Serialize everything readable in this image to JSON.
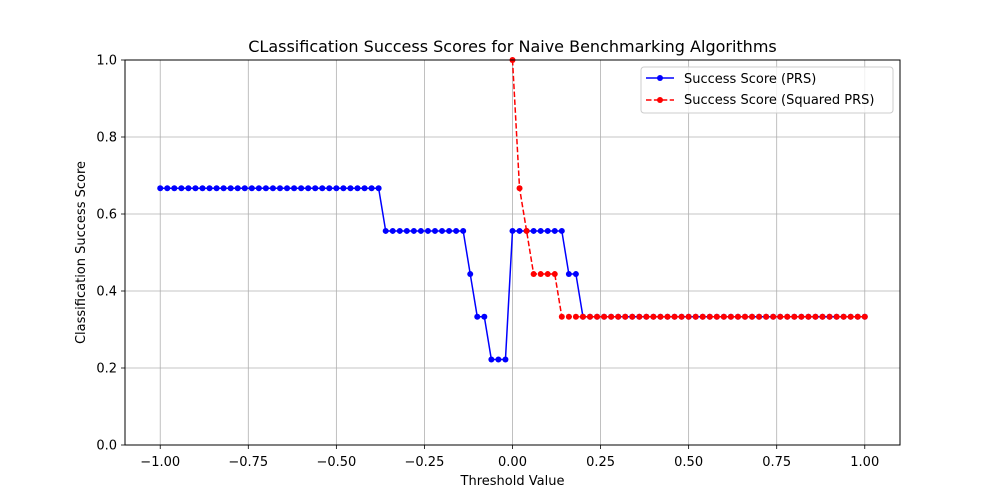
{
  "chart_data": {
    "type": "line",
    "title": "CLassification Success Scores for Naive Benchmarking Algorithms",
    "xlabel": "Threshold Value",
    "ylabel": "Classification Success Score",
    "xlim": [
      -1.1,
      1.1
    ],
    "ylim": [
      0.0,
      1.0
    ],
    "grid": true,
    "legend_position": "top-right",
    "x_ticks": [
      -1.0,
      -0.75,
      -0.5,
      -0.25,
      0.0,
      0.25,
      0.5,
      0.75,
      1.0
    ],
    "x_tick_labels": [
      "−1.00",
      "−0.75",
      "−0.50",
      "−0.25",
      "0.00",
      "0.25",
      "0.50",
      "0.75",
      "1.00"
    ],
    "y_ticks": [
      0.0,
      0.2,
      0.4,
      0.6,
      0.8,
      1.0
    ],
    "y_tick_labels": [
      "0.0",
      "0.2",
      "0.4",
      "0.6",
      "0.8",
      "1.0"
    ],
    "series": [
      {
        "name": "Success Score (PRS)",
        "color": "#0000ff",
        "line_style": "solid",
        "marker": "circle",
        "x": [
          -1.0,
          -0.98,
          -0.96,
          -0.94,
          -0.92,
          -0.9,
          -0.88,
          -0.86,
          -0.84,
          -0.82,
          -0.8,
          -0.78,
          -0.76,
          -0.74,
          -0.72,
          -0.7,
          -0.68,
          -0.66,
          -0.64,
          -0.62,
          -0.6,
          -0.58,
          -0.56,
          -0.54,
          -0.52,
          -0.5,
          -0.48,
          -0.46,
          -0.44,
          -0.42,
          -0.4,
          -0.38,
          -0.36,
          -0.34,
          -0.32,
          -0.3,
          -0.28,
          -0.26,
          -0.24,
          -0.22,
          -0.2,
          -0.18,
          -0.16,
          -0.14,
          -0.12,
          -0.1,
          -0.08,
          -0.06,
          -0.04,
          -0.02,
          0.0,
          0.02,
          0.04,
          0.06,
          0.08,
          0.1,
          0.12,
          0.14,
          0.16,
          0.18,
          0.2,
          0.22,
          0.24,
          0.26,
          0.28,
          0.3,
          0.32,
          0.34,
          0.36,
          0.38,
          0.4,
          0.42,
          0.44,
          0.46,
          0.48,
          0.5,
          0.52,
          0.54,
          0.56,
          0.58,
          0.6,
          0.62,
          0.64,
          0.66,
          0.68,
          0.7,
          0.72,
          0.74,
          0.76,
          0.78,
          0.8,
          0.82,
          0.84,
          0.86,
          0.88,
          0.9,
          0.92,
          0.94,
          0.96,
          0.98,
          1.0
        ],
        "y": [
          0.667,
          0.667,
          0.667,
          0.667,
          0.667,
          0.667,
          0.667,
          0.667,
          0.667,
          0.667,
          0.667,
          0.667,
          0.667,
          0.667,
          0.667,
          0.667,
          0.667,
          0.667,
          0.667,
          0.667,
          0.667,
          0.667,
          0.667,
          0.667,
          0.667,
          0.667,
          0.667,
          0.667,
          0.667,
          0.667,
          0.667,
          0.667,
          0.556,
          0.556,
          0.556,
          0.556,
          0.556,
          0.556,
          0.556,
          0.556,
          0.556,
          0.556,
          0.556,
          0.556,
          0.444,
          0.333,
          0.333,
          0.222,
          0.222,
          0.222,
          0.556,
          0.556,
          0.556,
          0.556,
          0.556,
          0.556,
          0.556,
          0.556,
          0.444,
          0.444,
          0.333,
          0.333,
          0.333,
          0.333,
          0.333,
          0.333,
          0.333,
          0.333,
          0.333,
          0.333,
          0.333,
          0.333,
          0.333,
          0.333,
          0.333,
          0.333,
          0.333,
          0.333,
          0.333,
          0.333,
          0.333,
          0.333,
          0.333,
          0.333,
          0.333,
          0.333,
          0.333,
          0.333,
          0.333,
          0.333,
          0.333,
          0.333,
          0.333,
          0.333,
          0.333,
          0.333,
          0.333,
          0.333,
          0.333,
          0.333,
          0.333
        ]
      },
      {
        "name": "Success Score (Squared PRS)",
        "color": "#ff0000",
        "line_style": "dashed",
        "marker": "circle",
        "x": [
          0.0,
          0.02,
          0.04,
          0.06,
          0.08,
          0.1,
          0.12,
          0.14,
          0.16,
          0.18,
          0.2,
          0.22,
          0.24,
          0.26,
          0.28,
          0.3,
          0.32,
          0.34,
          0.36,
          0.38,
          0.4,
          0.42,
          0.44,
          0.46,
          0.48,
          0.5,
          0.52,
          0.54,
          0.56,
          0.58,
          0.6,
          0.62,
          0.64,
          0.66,
          0.68,
          0.7,
          0.72,
          0.74,
          0.76,
          0.78,
          0.8,
          0.82,
          0.84,
          0.86,
          0.88,
          0.9,
          0.92,
          0.94,
          0.96,
          0.98,
          1.0
        ],
        "y": [
          1.0,
          0.667,
          0.556,
          0.444,
          0.444,
          0.444,
          0.444,
          0.333,
          0.333,
          0.333,
          0.333,
          0.333,
          0.333,
          0.333,
          0.333,
          0.333,
          0.333,
          0.333,
          0.333,
          0.333,
          0.333,
          0.333,
          0.333,
          0.333,
          0.333,
          0.333,
          0.333,
          0.333,
          0.333,
          0.333,
          0.333,
          0.333,
          0.333,
          0.333,
          0.333,
          0.333,
          0.333,
          0.333,
          0.333,
          0.333,
          0.333,
          0.333,
          0.333,
          0.333,
          0.333,
          0.333,
          0.333,
          0.333,
          0.333,
          0.333,
          0.333
        ]
      }
    ]
  }
}
